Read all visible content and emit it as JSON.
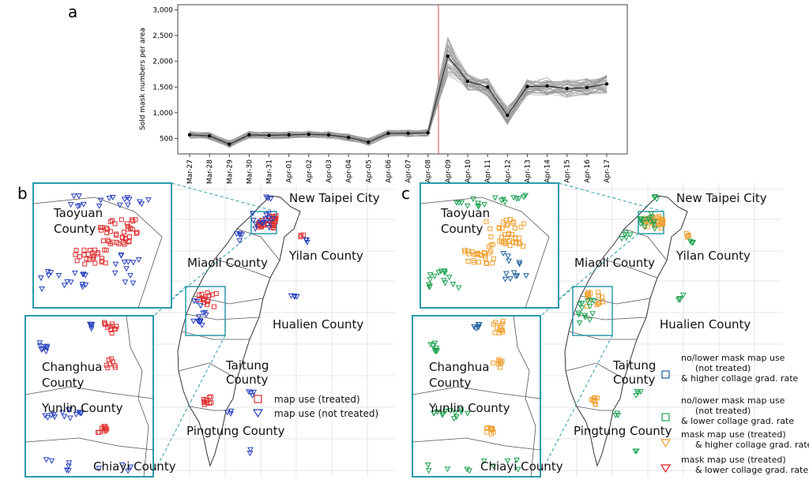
{
  "panels": {
    "a": "a",
    "b": "b",
    "c": "c"
  },
  "chart_data": [
    {
      "type": "line",
      "panel": "a",
      "ylabel": "Sold mask numbers per area",
      "x": [
        "Mar-27",
        "Mar-28",
        "Mar-29",
        "Mar-30",
        "Mar-31",
        "Apr-01",
        "Apr-02",
        "Apr-03",
        "Apr-04",
        "Apr-05",
        "Apr-06",
        "Apr-07",
        "Apr-08",
        "Apr-09",
        "Apr-10",
        "Apr-11",
        "Apr-12",
        "Apr-13",
        "Apr-14",
        "Apr-15",
        "Apr-16",
        "Apr-17"
      ],
      "yticks": [
        "500",
        "1,000",
        "1,500",
        "2,000",
        "2,500",
        "3,000"
      ],
      "ylim": [
        200,
        3100
      ],
      "mean": [
        570,
        550,
        390,
        570,
        560,
        570,
        580,
        570,
        520,
        430,
        600,
        600,
        610,
        2100,
        1610,
        1500,
        950,
        1510,
        1520,
        1470,
        1490,
        1560
      ],
      "vertical_marker_between": [
        "Apr-08",
        "Apr-09"
      ],
      "colors": {
        "lines": "#9a9a9a",
        "mean": "#000000",
        "marker": "#d9534f"
      }
    },
    {
      "type": "scatter",
      "panel": "b",
      "places": [
        "New Taipei City",
        "Taoyuan County",
        "Miaoli County",
        "Yilan County",
        "Hualien County",
        "Taitung County",
        "Pingtung County",
        "Changhua County",
        "Yunlin County",
        "Chiayi County"
      ],
      "legend": [
        {
          "label": "map use (treated)",
          "marker": "square",
          "color": "#e03030"
        },
        {
          "label": "map use (not treated)",
          "marker": "triangle-down",
          "color": "#2840c0"
        }
      ]
    },
    {
      "type": "scatter",
      "panel": "c",
      "places": [
        "New Taipei City",
        "Taoyuan County",
        "Miaoli County",
        "Yilan County",
        "Hualien County",
        "Taitung County",
        "Pingtung County",
        "Changhua County",
        "Yunlin County",
        "Chiayi County"
      ],
      "legend": [
        {
          "label": "no/lower mask map use\n(not treated)\n& higher collage grad. rate",
          "marker": "square",
          "color": "#1f5fa0"
        },
        {
          "label": "no/lower mask map use\n(not treated)\n& lower collage grad. rate",
          "marker": "square",
          "color": "#1aa050"
        },
        {
          "label": "mask map use (treated)\n& higher collage grad. rate",
          "marker": "triangle-down",
          "color": "#f0a030"
        },
        {
          "label": "mask map use (treated)\n& lower collage grad. rate",
          "marker": "triangle-down",
          "color": "#e02020"
        }
      ]
    }
  ]
}
